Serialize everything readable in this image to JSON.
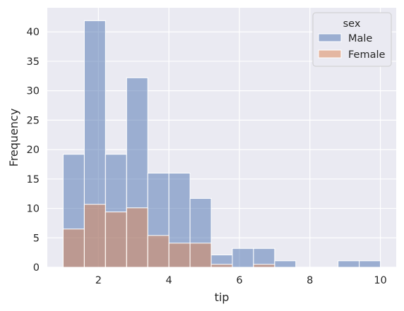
{
  "chart_data": {
    "type": "bar",
    "subtype": "histogram-overlay",
    "xlabel": "tip",
    "ylabel": "Frequency",
    "xlim": [
      0.55,
      10.45
    ],
    "ylim": [
      0,
      44.1
    ],
    "x_ticks": [
      2,
      4,
      6,
      8,
      10
    ],
    "y_ticks": [
      0,
      5,
      10,
      15,
      20,
      25,
      30,
      35,
      40
    ],
    "grid": true,
    "legend": {
      "title": "sex",
      "position": "top-right"
    },
    "bin_edges": [
      1.0,
      1.6,
      2.2,
      2.8,
      3.4,
      4.0,
      4.6,
      5.2,
      5.8,
      6.4,
      7.0,
      7.6,
      8.2,
      8.8,
      9.4,
      10.0
    ],
    "series": [
      {
        "name": "Male",
        "color": "#4c72b0",
        "values": [
          19.2,
          41.9,
          19.2,
          32.2,
          16.0,
          16.0,
          11.7,
          2.1,
          3.2,
          3.2,
          1.1,
          0,
          0,
          1.1,
          1.1
        ]
      },
      {
        "name": "Female",
        "color": "#dd8452",
        "values": [
          6.5,
          10.7,
          9.4,
          10.1,
          5.4,
          4.1,
          4.1,
          0.5,
          0,
          0.5,
          0,
          0,
          0,
          0,
          0
        ]
      }
    ]
  }
}
